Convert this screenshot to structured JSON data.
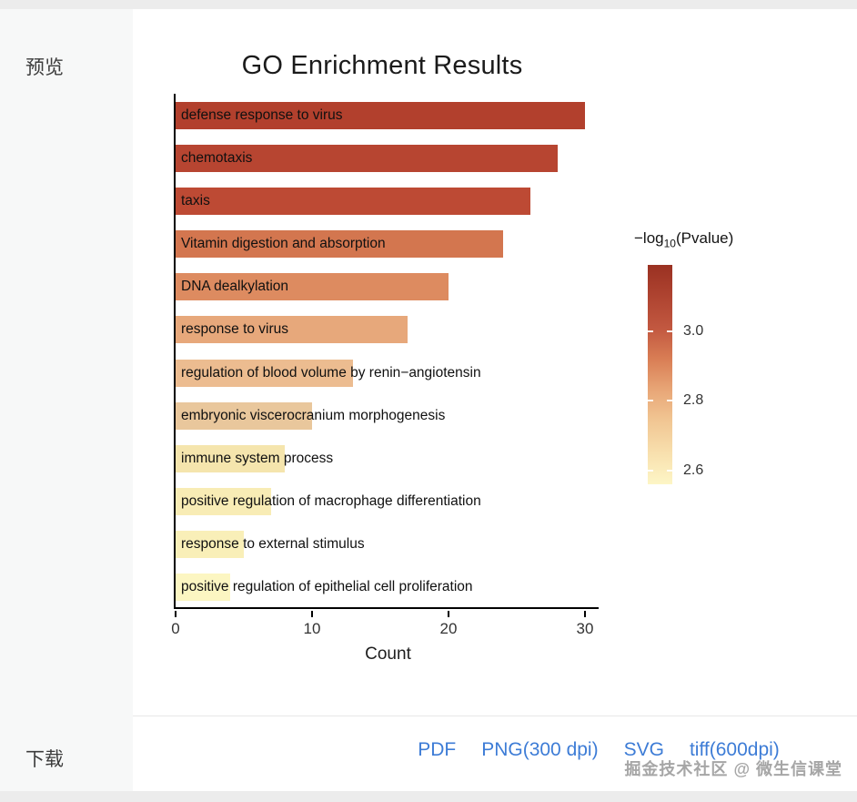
{
  "sidebar": {
    "preview_label": "预览",
    "download_label": "下载"
  },
  "downloads": {
    "links": [
      {
        "name": "pdf",
        "label": "PDF"
      },
      {
        "name": "png-300dpi",
        "label": "PNG(300 dpi)"
      },
      {
        "name": "svg",
        "label": "SVG"
      },
      {
        "name": "tiff-600dpi",
        "label": "tiff(600dpi)"
      }
    ],
    "link_color": "#3d7cd6"
  },
  "watermark": "掘金技术社区 @ 微生信课堂",
  "chart_data": {
    "type": "bar",
    "orientation": "horizontal",
    "title": "GO Enrichment Results",
    "xlabel": "Count",
    "xlim": [
      0,
      31
    ],
    "xticks": [
      0,
      10,
      20,
      30
    ],
    "grid": false,
    "categories": [
      "defense response to virus",
      "chemotaxis",
      "taxis",
      "Vitamin digestion and absorption",
      "DNA dealkylation",
      "response to virus",
      "regulation of blood volume by renin−angiotensin",
      "embryonic viscerocranium morphogenesis",
      "immune system process",
      "positive regulation of macrophage differentiation",
      "response to external stimulus",
      "positive regulation of epithelial cell proliferation"
    ],
    "values": [
      30,
      28,
      26,
      24,
      20,
      17,
      13,
      10,
      8,
      7,
      5,
      4
    ],
    "bar_colors": [
      "#b2402d",
      "#b74531",
      "#bd4a34",
      "#d3764f",
      "#dd8b60",
      "#e7a87b",
      "#ecbc90",
      "#e9c79c",
      "#f5e5ad",
      "#f8ecb5",
      "#f9efb8",
      "#fcf6c2"
    ],
    "legend": {
      "title_prefix": "−log",
      "title_sub": "10",
      "title_suffix": "(Pvalue)",
      "position": "right",
      "min": 2.56,
      "max": 3.19,
      "ticks": [
        {
          "value": 3.0,
          "label": "3.0"
        },
        {
          "value": 2.8,
          "label": "2.8"
        },
        {
          "value": 2.6,
          "label": "2.6"
        }
      ],
      "gradient": [
        "#9a3122",
        "#ae4330",
        "#c25840",
        "#d97e55",
        "#e8a677",
        "#f1c693",
        "#f8e0ae",
        "#fdf6c6"
      ]
    }
  }
}
